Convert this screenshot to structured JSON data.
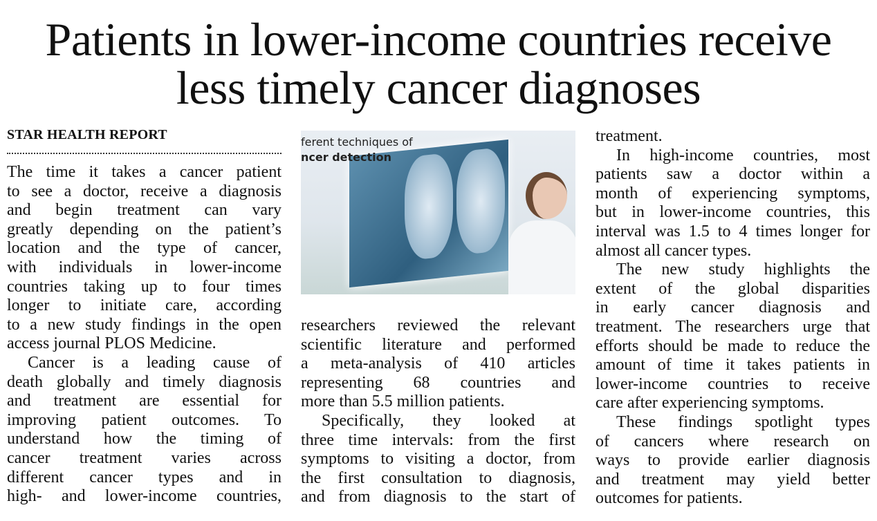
{
  "headline": {
    "lines": [
      "Patients in lower-income countries receive",
      "less timely cancer diagnoses"
    ]
  },
  "kicker": "STAR HEALTH REPORT",
  "photo": {
    "caption_line1": "ferent techniques of",
    "caption_line2": "ncer detection"
  },
  "columns": [
    {
      "paragraphs": [
        {
          "indent": false,
          "lines": [
            "The time it takes a cancer patient",
            "to see a doctor, receive a diagnosis",
            "and begin treatment can vary",
            "greatly depending on the patient’s",
            "location and the type of cancer,",
            "with individuals in lower-income",
            "countries taking up to four times",
            "longer to initiate care, according",
            "to a new study findings in the open",
            "access journal PLOS Medicine."
          ]
        },
        {
          "indent": true,
          "lines": [
            "Cancer is a leading cause of",
            "death globally and timely diagnosis",
            "and treatment are essential for",
            "improving patient outcomes. To",
            "understand how the timing of",
            "cancer treatment varies across",
            "different cancer types and in",
            "high- and lower-income countries,"
          ],
          "continues": true
        }
      ]
    },
    {
      "paragraphs": [
        {
          "indent": false,
          "lines": [
            "researchers reviewed the relevant",
            "scientific literature and performed",
            "a meta-analysis of 410 articles",
            "representing 68 countries and",
            "more than 5.5 million patients."
          ]
        },
        {
          "indent": true,
          "lines": [
            "Specifically, they looked at",
            "three time intervals: from the first",
            "symptoms to visiting a doctor, from",
            "the first consultation to diagnosis,",
            "and from diagnosis to the start of"
          ],
          "continues": true
        }
      ]
    },
    {
      "paragraphs": [
        {
          "indent": false,
          "lines": [
            "treatment."
          ]
        },
        {
          "indent": true,
          "lines": [
            "In high-income countries, most",
            "patients saw a doctor within a",
            "month of experiencing symptoms,",
            "but in lower-income countries, this",
            "interval was 1.5 to 4 times longer for",
            "almost all cancer types."
          ]
        },
        {
          "indent": true,
          "lines": [
            "The new study highlights the",
            "extent of the global disparities",
            "in early cancer diagnosis and",
            "treatment. The researchers urge that",
            "efforts should be made to reduce the",
            "amount of time it takes patients in",
            "lower-income countries to receive",
            "care after experiencing symptoms."
          ]
        },
        {
          "indent": true,
          "lines": [
            "These findings spotlight types",
            "of cancers where research on",
            "ways to provide earlier diagnosis",
            "and treatment may yield better",
            "outcomes for patients."
          ]
        }
      ]
    }
  ]
}
